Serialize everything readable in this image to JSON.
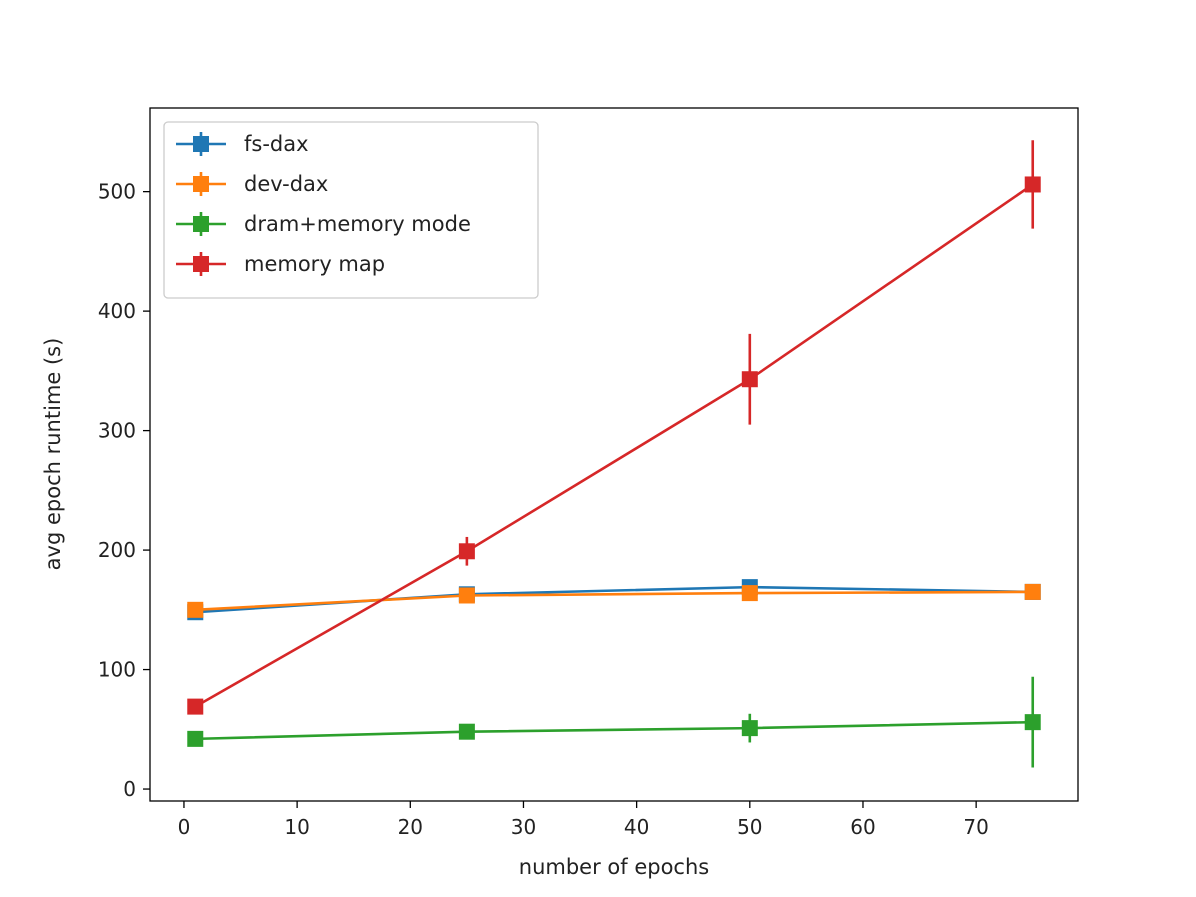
{
  "chart_data": {
    "type": "line",
    "title": "",
    "xlabel": "number of epochs",
    "ylabel": "avg epoch runtime (s)",
    "xlim": [
      -3,
      79
    ],
    "ylim": [
      -10,
      570
    ],
    "xticks": [
      0,
      10,
      20,
      30,
      40,
      50,
      60,
      70
    ],
    "yticks": [
      0,
      100,
      200,
      300,
      400,
      500
    ],
    "grid": false,
    "legend_position": "top-left",
    "series": [
      {
        "name": "fs-dax",
        "color": "#1f77b4",
        "marker": "square",
        "x": [
          1,
          25,
          50,
          75
        ],
        "y": [
          148,
          163,
          169,
          165
        ],
        "yerr": [
          2,
          2,
          3,
          2
        ]
      },
      {
        "name": "dev-dax",
        "color": "#ff7f0e",
        "marker": "square",
        "x": [
          1,
          25,
          50,
          75
        ],
        "y": [
          150,
          162,
          164,
          165
        ],
        "yerr": [
          2,
          2,
          2,
          2
        ]
      },
      {
        "name": "dram+memory mode",
        "color": "#2ca02c",
        "marker": "square",
        "x": [
          1,
          25,
          50,
          75
        ],
        "y": [
          42,
          48,
          51,
          56
        ],
        "yerr": [
          2,
          3,
          12,
          38
        ]
      },
      {
        "name": "memory map",
        "color": "#d62728",
        "marker": "square",
        "x": [
          1,
          25,
          50,
          75
        ],
        "y": [
          69,
          199,
          343,
          506
        ],
        "yerr": [
          4,
          12,
          38,
          37
        ]
      }
    ]
  }
}
